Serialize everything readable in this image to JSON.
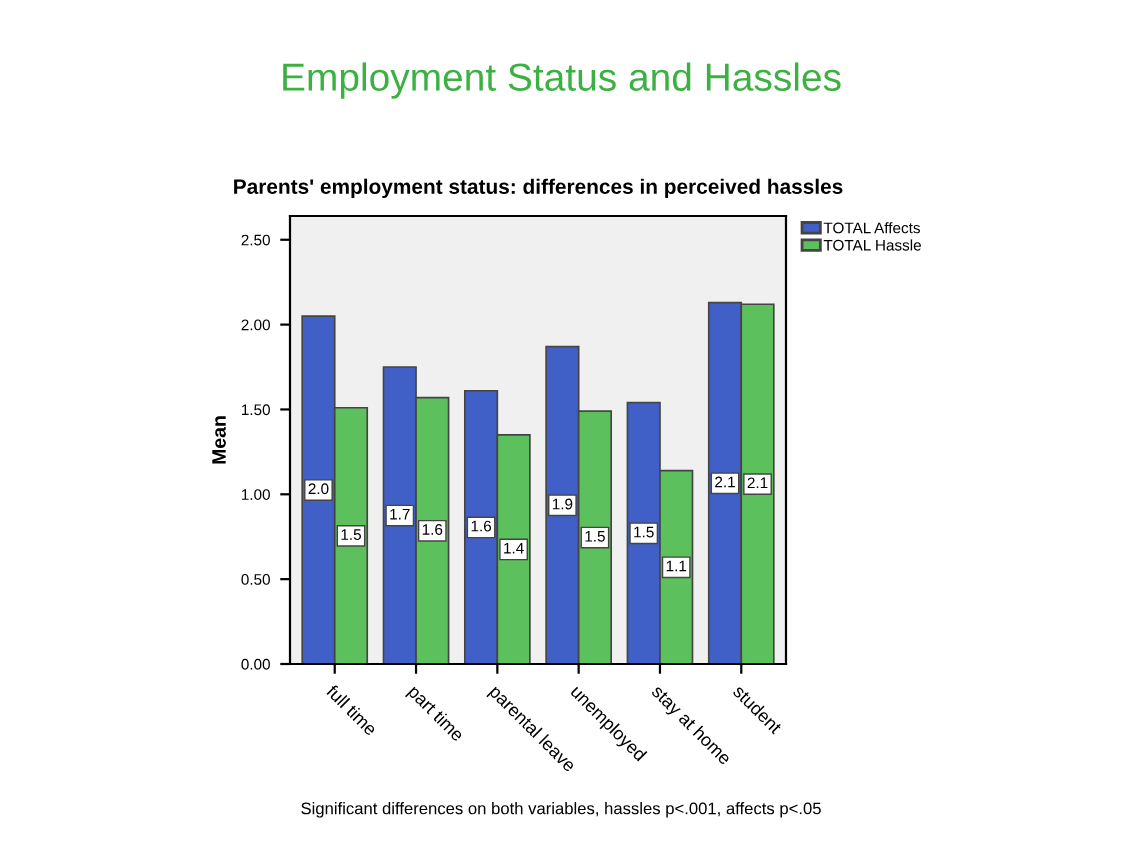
{
  "chart_data": {
    "type": "bar",
    "title": "Employment Status and Hassles",
    "subtitle": "Parents' employment status: differences in perceived hassles",
    "ylabel": "Mean",
    "categories": [
      "full time",
      "part time",
      "parental leave",
      "unemployed",
      "stay at home",
      "student"
    ],
    "series": [
      {
        "name": "TOTAL Affects",
        "color": "#4060c8",
        "values": [
          2.05,
          1.75,
          1.61,
          1.87,
          1.54,
          2.13
        ],
        "value_labels": [
          "2.0",
          "1.7",
          "1.6",
          "1.9",
          "1.5",
          "2.1"
        ]
      },
      {
        "name": "TOTAL Hassle",
        "color": "#5cc05c",
        "values": [
          1.51,
          1.57,
          1.35,
          1.49,
          1.14,
          2.12
        ],
        "value_labels": [
          "1.5",
          "1.6",
          "1.4",
          "1.5",
          "1.1",
          "2.1"
        ]
      }
    ],
    "ylim": [
      0,
      2.64
    ],
    "yticks": [
      {
        "value": 0,
        "label": "0.00"
      },
      {
        "value": 0.5,
        "label": "0.50"
      },
      {
        "value": 1,
        "label": "1.00"
      },
      {
        "value": 1.5,
        "label": "1.50"
      },
      {
        "value": 2,
        "label": "2.00"
      },
      {
        "value": 2.5,
        "label": "2.50"
      }
    ],
    "grid": false,
    "legend": "top right",
    "annotations": [
      "Significant differences on both variables, hassles p<.001, affects p<.05"
    ]
  }
}
